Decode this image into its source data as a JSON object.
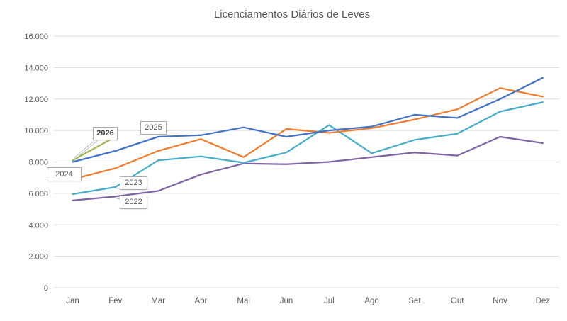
{
  "chart_data": {
    "type": "line",
    "title": "Licenciamentos Diários de Leves",
    "categories": [
      "Jan",
      "Fev",
      "Mar",
      "Abr",
      "Mai",
      "Jun",
      "Jul",
      "Ago",
      "Set",
      "Out",
      "Nov",
      "Dez"
    ],
    "series": [
      {
        "name": "2022",
        "color": "#8064A2",
        "values": [
          5550,
          5800,
          6150,
          7200,
          7900,
          7850,
          8000,
          8300,
          8600,
          8400,
          9600,
          9200
        ]
      },
      {
        "name": "2023",
        "color": "#4BACC6",
        "values": [
          5950,
          6400,
          8100,
          8350,
          7950,
          8600,
          10350,
          8550,
          9400,
          9800,
          11200,
          11800
        ]
      },
      {
        "name": "2024",
        "color": "#ED7D31",
        "values": [
          6900,
          7600,
          8700,
          9450,
          8300,
          10100,
          9850,
          10150,
          10700,
          11350,
          12700,
          12150
        ]
      },
      {
        "name": "2025",
        "color": "#4472C4",
        "values": [
          8000,
          8700,
          9600,
          9700,
          10200,
          9600,
          10000,
          10250,
          11000,
          10800,
          12000,
          13350
        ]
      },
      {
        "name": "2026",
        "color": "#9DB954",
        "values": [
          8100,
          9600,
          null,
          null,
          null,
          null,
          null,
          null,
          null,
          null,
          null,
          null
        ]
      }
    ],
    "ylim": [
      0,
      16000
    ],
    "ytick_step": 2000,
    "ytick_labels": [
      "0",
      "2.000",
      "4.000",
      "6.000",
      "8.000",
      "10.000",
      "12.000",
      "14.000",
      "16.000"
    ],
    "grid": "horizontal",
    "gridline_color": "#D9D9D9",
    "axis_label_color": "#595959",
    "legend": "none (series identified by callout labels on chart)"
  },
  "labels": {
    "y2026": {
      "text": "2026"
    },
    "y2025": {
      "text": "2025"
    },
    "y2024": {
      "text": "2024"
    },
    "y2023": {
      "text": "2023"
    },
    "y2022": {
      "text": "2022"
    }
  }
}
